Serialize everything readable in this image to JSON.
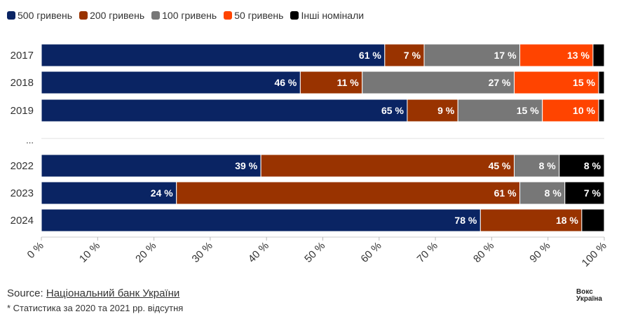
{
  "chart_data": {
    "type": "bar",
    "orientation": "horizontal",
    "stacked": true,
    "categories": [
      "2017",
      "2018",
      "2019",
      "...",
      "2022",
      "2023",
      "2024"
    ],
    "series": [
      {
        "name": "500 гривень",
        "color": "#0a2463",
        "values": [
          61,
          46,
          65,
          null,
          39,
          24,
          78
        ],
        "labels": [
          "61 %",
          "46 %",
          "65 %",
          "",
          "39 %",
          "24 %",
          "78 %"
        ]
      },
      {
        "name": "200 гривень",
        "color": "#993300",
        "values": [
          7,
          11,
          9,
          null,
          45,
          61,
          18
        ],
        "labels": [
          "7 %",
          "11 %",
          "9 %",
          "",
          "45 %",
          "61 %",
          "18 %"
        ]
      },
      {
        "name": "100 гривень",
        "color": "#777777",
        "values": [
          17,
          27,
          15,
          null,
          8,
          8,
          0
        ],
        "labels": [
          "17 %",
          "27 %",
          "15 %",
          "",
          "8 %",
          "8 %",
          ""
        ]
      },
      {
        "name": "50 гривень",
        "color": "#ff4400",
        "values": [
          13,
          15,
          10,
          null,
          0,
          0,
          0
        ],
        "labels": [
          "13 %",
          "15 %",
          "10 %",
          "",
          "",
          "",
          ""
        ]
      },
      {
        "name": "Інші номінали",
        "color": "#000000",
        "values": [
          2,
          1,
          1,
          null,
          8,
          7,
          4
        ],
        "labels": [
          "",
          "",
          "",
          "",
          "8 %",
          "7 %",
          ""
        ]
      }
    ],
    "xlim": [
      0,
      100
    ],
    "x_ticks": [
      "0 %",
      "10 %",
      "20 %",
      "30 %",
      "40 %",
      "50 %",
      "60 %",
      "70 %",
      "80 %",
      "90 %",
      "100 %"
    ],
    "title": "",
    "xlabel": "",
    "ylabel": ""
  },
  "footer": {
    "source_prefix": "Source: ",
    "source_link": "Національний банк України",
    "note": "* Статистика за 2020 та 2021 рр. відсутня",
    "logo_line1": "Вокс",
    "logo_line2": "Україна"
  }
}
